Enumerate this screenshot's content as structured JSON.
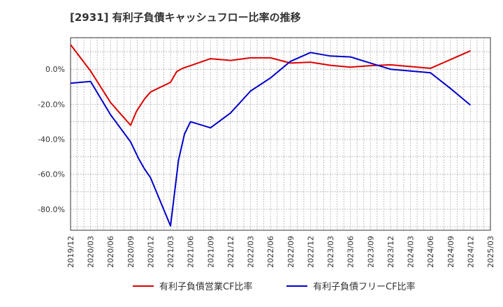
{
  "chart_data": {
    "type": "line",
    "title": "[2931]  有利子負債キャッシュフロー比率の推移",
    "xlabel": "",
    "ylabel": "",
    "ylim": [
      -92,
      18
    ],
    "yticks": [
      0,
      -20,
      -40,
      -60,
      -80
    ],
    "ytick_labels": [
      "0.0%",
      "-20.0%",
      "-40.0%",
      "-60.0%",
      "-80.0%"
    ],
    "xtick_labels": [
      "2019/12",
      "2020/03",
      "2020/06",
      "2020/09",
      "2020/12",
      "2021/03",
      "2021/06",
      "2021/09",
      "2021/12",
      "2022/03",
      "2022/06",
      "2022/09",
      "2022/12",
      "2023/03",
      "2023/06",
      "2023/09",
      "2023/12",
      "2024/03",
      "2024/06",
      "2024/09",
      "2024/12",
      "2025/03"
    ],
    "grid": true,
    "legend_position": "bottom",
    "series": [
      {
        "name": "有利子負債営業CF比率",
        "color": "#dd0000",
        "points": [
          [
            0,
            14
          ],
          [
            1,
            -1
          ],
          [
            2,
            -19
          ],
          [
            3,
            -32
          ],
          [
            3.3,
            -24
          ],
          [
            3.7,
            -17
          ],
          [
            4,
            -13
          ],
          [
            5,
            -7.5
          ],
          [
            5.3,
            -1.5
          ],
          [
            5.6,
            0.5
          ],
          [
            6,
            2
          ],
          [
            7,
            6
          ],
          [
            8,
            5
          ],
          [
            9,
            6.5
          ],
          [
            10,
            6.5
          ],
          [
            11,
            3.5
          ],
          [
            12,
            4
          ],
          [
            13,
            2.2
          ],
          [
            14,
            1.2
          ],
          [
            15,
            2
          ],
          [
            16,
            2.5
          ],
          [
            17,
            1.5
          ],
          [
            18,
            0.5
          ],
          [
            19,
            5.5
          ],
          [
            20,
            10.5
          ]
        ]
      },
      {
        "name": "有利子負債フリーCF比率",
        "color": "#0000cc",
        "points": [
          [
            0,
            -8
          ],
          [
            1,
            -7
          ],
          [
            2,
            -26
          ],
          [
            3,
            -41.5
          ],
          [
            3.4,
            -51
          ],
          [
            3.7,
            -57
          ],
          [
            4,
            -62
          ],
          [
            5,
            -89.5
          ],
          [
            5.4,
            -52
          ],
          [
            5.7,
            -37
          ],
          [
            6,
            -30
          ],
          [
            7,
            -33.5
          ],
          [
            8,
            -25
          ],
          [
            9,
            -12.5
          ],
          [
            10,
            -5
          ],
          [
            11,
            4.5
          ],
          [
            12,
            9.5
          ],
          [
            13,
            7.5
          ],
          [
            14,
            7
          ],
          [
            15,
            3.5
          ],
          [
            16,
            0
          ],
          [
            17,
            -1
          ],
          [
            18,
            -2
          ],
          [
            19,
            -11
          ],
          [
            20,
            -20.5
          ]
        ]
      }
    ]
  }
}
